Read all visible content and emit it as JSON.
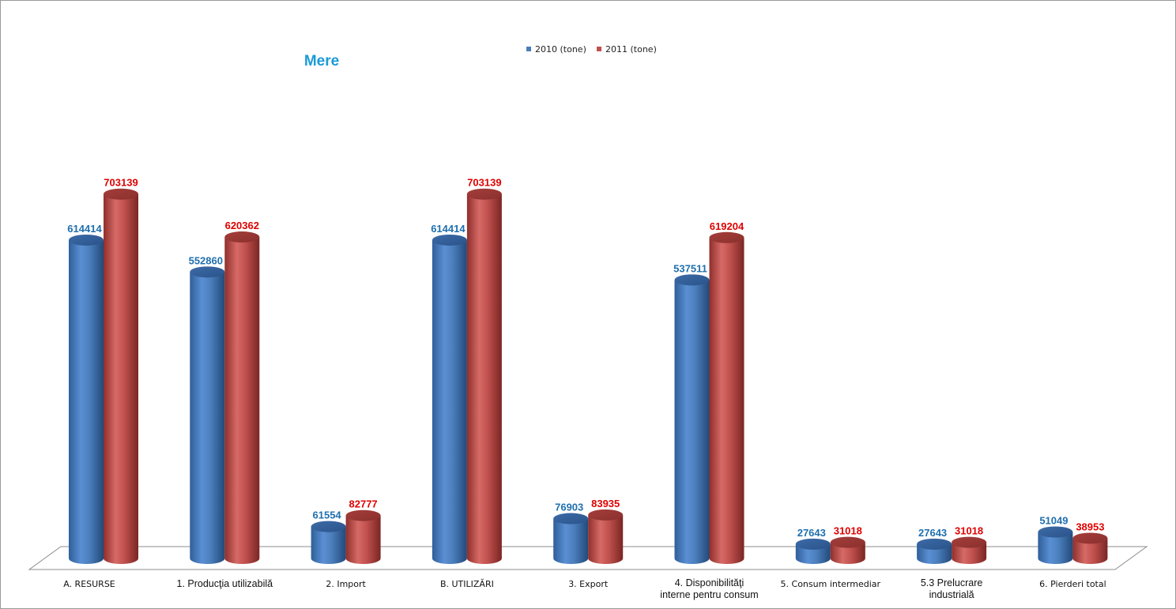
{
  "chart_data": {
    "type": "bar",
    "title": "Mere",
    "categories": [
      [
        "A. RESURSE"
      ],
      [
        "1. Producţia utilizabilă"
      ],
      [
        "2. Import"
      ],
      [
        "B. UTILIZĂRI"
      ],
      [
        "3. Export"
      ],
      [
        "4. Disponibilităţi",
        "interne pentru consum"
      ],
      [
        "5. Consum intermediar"
      ],
      [
        "5.3 Prelucrare",
        "industrială"
      ],
      [
        "6. Pierderi total"
      ]
    ],
    "series": [
      {
        "name": "2010 (tone)",
        "color": "#4a7ebb",
        "label_color": "#1f6fae",
        "values": [
          614414,
          552860,
          61554,
          614414,
          76903,
          537511,
          27643,
          27643,
          51049
        ]
      },
      {
        "name": "2011 (tone)",
        "color": "#c0504d",
        "label_color": "#e00000",
        "values": [
          703139,
          620362,
          82777,
          703139,
          83935,
          619204,
          31018,
          31018,
          38953
        ]
      }
    ],
    "ylim": [
      0,
      800000
    ],
    "legend": "top-center",
    "grid": false,
    "style": "3d-cylinder",
    "title_color": "#1a9bd7"
  }
}
